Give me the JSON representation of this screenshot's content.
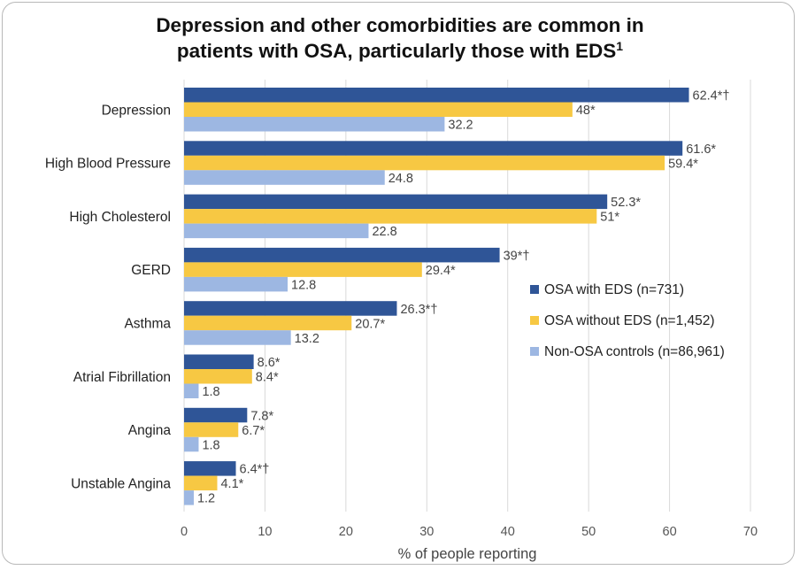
{
  "chart_data": {
    "type": "bar",
    "orientation": "horizontal",
    "title_line1": "Depression and other comorbidities are common in",
    "title_line2": "patients with OSA, particularly those with EDS",
    "title_superscript": "1",
    "xlabel": "% of people reporting",
    "ylabel": "",
    "xlim": [
      0,
      70
    ],
    "xticks": [
      0,
      10,
      20,
      30,
      40,
      50,
      60,
      70
    ],
    "grid": "vertical",
    "legend_position": "right",
    "categories": [
      "Depression",
      "High Blood Pressure",
      "High Cholesterol",
      "GERD",
      "Asthma",
      "Atrial Fibrillation",
      "Angina",
      "Unstable Angina"
    ],
    "series": [
      {
        "name": "OSA with EDS (n=731)",
        "color": "#2f5597",
        "values": [
          62.4,
          61.6,
          52.3,
          39,
          26.3,
          8.6,
          7.8,
          6.4
        ],
        "labels": [
          "62.4*†",
          "61.6*",
          "52.3*",
          "39*†",
          "26.3*†",
          "8.6*",
          "7.8*",
          "6.4*†"
        ]
      },
      {
        "name": "OSA without EDS (n=1,452)",
        "color": "#f7c843",
        "values": [
          48,
          59.4,
          51,
          29.4,
          20.7,
          8.4,
          6.7,
          4.1
        ],
        "labels": [
          "48*",
          "59.4*",
          "51*",
          "29.4*",
          "20.7*",
          "8.4*",
          "6.7*",
          "4.1*"
        ]
      },
      {
        "name": "Non-OSA controls (n=86,961)",
        "color": "#9db7e2",
        "values": [
          32.2,
          24.8,
          22.8,
          12.8,
          13.2,
          1.8,
          1.8,
          1.2
        ],
        "labels": [
          "32.2",
          "24.8",
          "22.8",
          "12.8",
          "13.2",
          "1.8",
          "1.8",
          "1.2"
        ]
      }
    ]
  }
}
